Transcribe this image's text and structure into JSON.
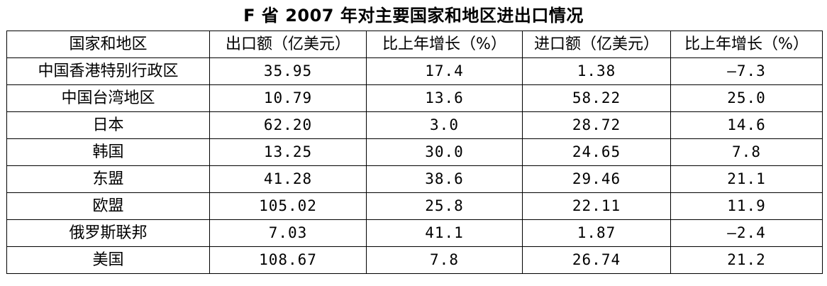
{
  "title": "F 省 2007 年对主要国家和地区进出口情况",
  "headers": [
    "国家和地区",
    "出口额（亿美元）",
    "比上年增长（%）",
    "进口额（亿美元）",
    "比上年增长（%）"
  ],
  "rows": [
    [
      "中国香港特别行政区",
      "35.95",
      "17.4",
      "1.38",
      "—7.3"
    ],
    [
      "中国台湾地区",
      "10.79",
      "13.6",
      "58.22",
      "25.0"
    ],
    [
      "日本",
      "62.20",
      "3.0",
      "28.72",
      "14.6"
    ],
    [
      "韩国",
      "13.25",
      "30.0",
      "24.65",
      "7.8"
    ],
    [
      "东盟",
      "41.28",
      "38.6",
      "29.46",
      "21.1"
    ],
    [
      "欧盟",
      "105.02",
      "25.8",
      "22.11",
      "11.9"
    ],
    [
      "俄罗斯联邦",
      "7.03",
      "41.1",
      "1.87",
      "—2.4"
    ],
    [
      "美国",
      "108.67",
      "7.8",
      "26.74",
      "21.2"
    ]
  ]
}
